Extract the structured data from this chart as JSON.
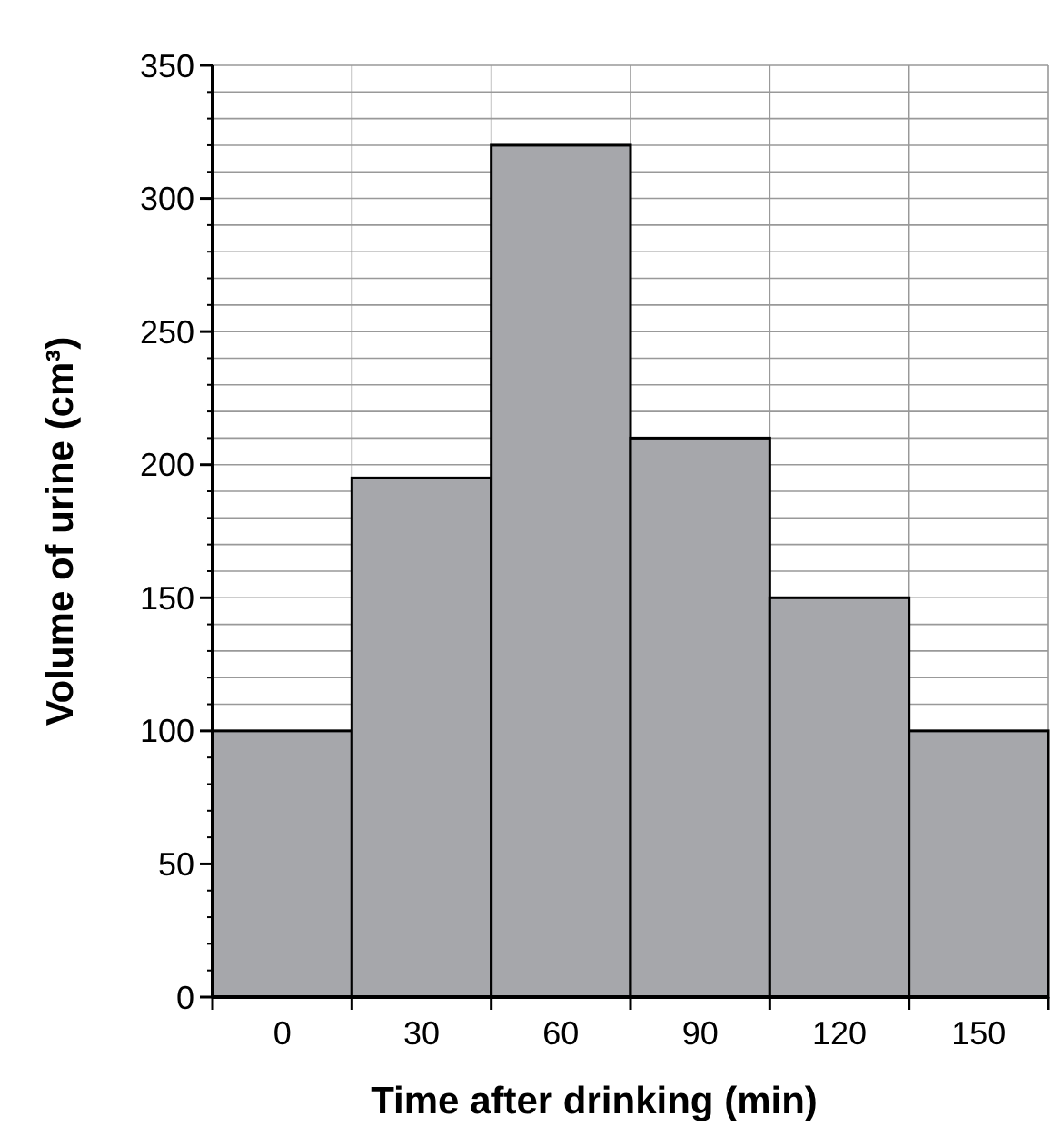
{
  "chart_data": {
    "type": "bar",
    "xlabel": "Time after drinking (min)",
    "ylabel": "Volume of urine (cm³)",
    "categories": [
      "0",
      "30",
      "60",
      "90",
      "120",
      "150"
    ],
    "values": [
      100,
      195,
      320,
      210,
      150,
      100
    ],
    "color": "#a6a7ab",
    "ylim": [
      0,
      350
    ],
    "yticks": [
      0,
      {
        "value": 10,
        "label": null
      },
      {
        "value": 20,
        "label": null
      },
      {
        "value": 30,
        "label": null
      },
      {
        "value": 40,
        "label": null
      },
      50,
      {
        "value": 60,
        "label": null
      },
      {
        "value": 70,
        "label": null
      },
      {
        "value": 80,
        "label": null
      },
      {
        "value": 90,
        "label": null
      },
      100,
      {
        "value": 110,
        "label": null
      },
      {
        "value": 120,
        "label": null
      },
      {
        "value": 130,
        "label": null
      },
      {
        "value": 140,
        "label": null
      },
      150,
      {
        "value": 160,
        "label": null
      },
      {
        "value": 170,
        "label": null
      },
      {
        "value": 180,
        "label": null
      },
      {
        "value": 190,
        "label": null
      },
      200,
      {
        "value": 210,
        "label": null
      },
      {
        "value": 220,
        "label": null
      },
      {
        "value": 230,
        "label": null
      },
      {
        "value": 240,
        "label": null
      },
      250,
      {
        "value": 260,
        "label": null
      },
      {
        "value": 270,
        "label": null
      },
      {
        "value": 280,
        "label": null
      },
      {
        "value": 290,
        "label": null
      },
      300,
      {
        "value": 310,
        "label": null
      },
      {
        "value": 320,
        "label": null
      },
      {
        "value": 330,
        "label": null
      },
      {
        "value": 340,
        "label": null
      },
      350
    ],
    "grid": true
  }
}
